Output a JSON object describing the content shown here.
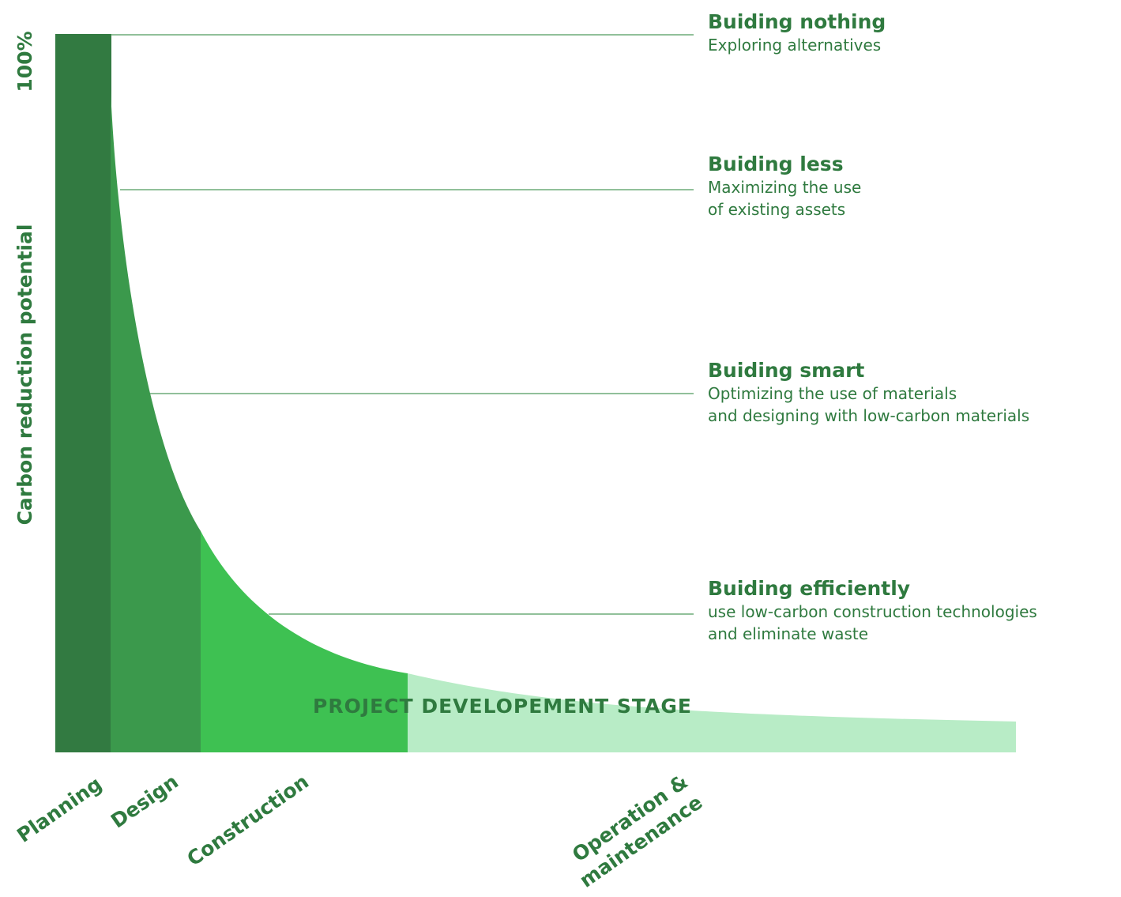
{
  "y_axis": {
    "top_label": "100%",
    "title": "Carbon reduction potential"
  },
  "x_axis_title": "PROJECT DEVELOPEMENT STAGE",
  "stages": [
    {
      "lines": [
        "Planning"
      ]
    },
    {
      "lines": [
        "Design"
      ]
    },
    {
      "lines": [
        "Construction"
      ]
    },
    {
      "lines": [
        "Operation &",
        "maintenance"
      ]
    }
  ],
  "annotations": [
    {
      "title": "Buiding nothing",
      "lines": [
        "Exploring alternatives"
      ]
    },
    {
      "title": "Buiding less",
      "lines": [
        "Maximizing the use",
        "of existing assets"
      ]
    },
    {
      "title": "Buiding smart",
      "lines": [
        "Optimizing the use of materials",
        "and designing with low-carbon materials"
      ]
    },
    {
      "title": "Buiding efficiently",
      "lines": [
        "use low-carbon construction technologies",
        "and eliminate waste"
      ]
    }
  ]
}
